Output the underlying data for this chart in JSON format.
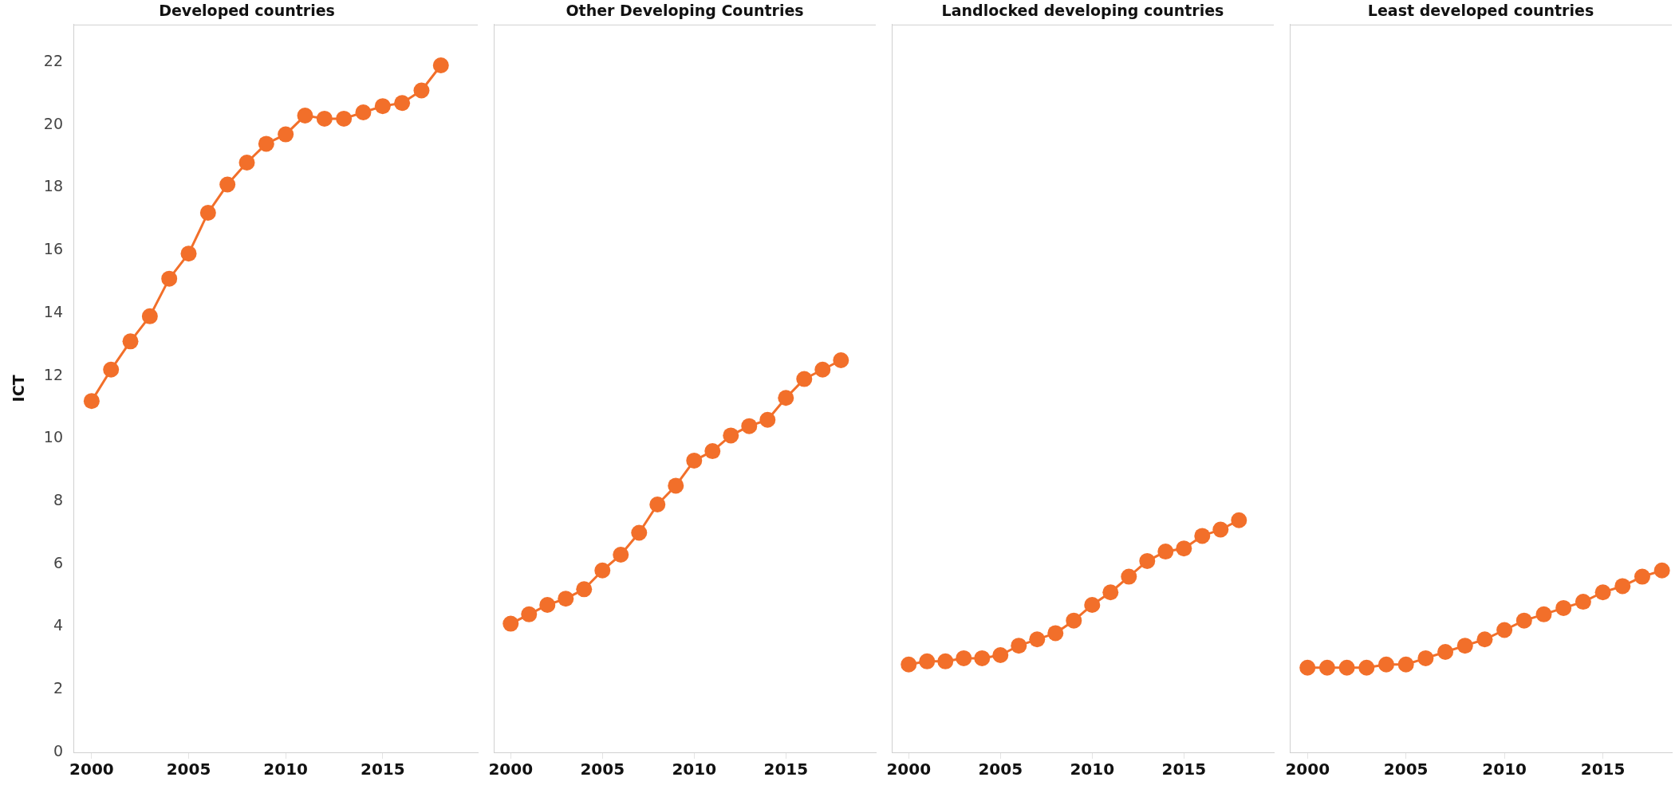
{
  "chart_data": [
    {
      "type": "line",
      "title": "Developed countries",
      "ylabel": "ICT",
      "x": [
        2000,
        2001,
        2002,
        2003,
        2004,
        2005,
        2006,
        2007,
        2008,
        2009,
        2010,
        2011,
        2012,
        2013,
        2014,
        2015,
        2016,
        2017,
        2018
      ],
      "series": [
        {
          "color": "#f26f2a",
          "values": [
            11.2,
            12.2,
            13.1,
            13.9,
            15.1,
            15.9,
            17.2,
            18.1,
            18.8,
            19.4,
            19.7,
            20.3,
            20.2,
            20.2,
            20.4,
            20.6,
            20.7,
            21.1,
            21.9
          ]
        }
      ],
      "xlim": [
        1999.1,
        2019.9
      ],
      "xticks": [
        2000,
        2005,
        2010,
        2015
      ],
      "ylim": [
        0,
        23.2
      ],
      "yticks": [
        0,
        2,
        4,
        6,
        8,
        10,
        12,
        14,
        16,
        18,
        20,
        22
      ],
      "grid": false,
      "marker": "circle",
      "line_style": "solid"
    },
    {
      "type": "line",
      "title": "Other Developing Countries",
      "x": [
        2000,
        2001,
        2002,
        2003,
        2004,
        2005,
        2006,
        2007,
        2008,
        2009,
        2010,
        2011,
        2012,
        2013,
        2014,
        2015,
        2016,
        2017,
        2018
      ],
      "series": [
        {
          "color": "#f26f2a",
          "values": [
            4.1,
            4.4,
            4.7,
            4.9,
            5.2,
            5.8,
            6.3,
            7.0,
            7.9,
            8.5,
            9.3,
            9.6,
            10.1,
            10.4,
            10.6,
            11.3,
            11.9,
            12.2,
            12.5
          ]
        }
      ],
      "xlim": [
        1999.1,
        2019.9
      ],
      "xticks": [
        2000,
        2005,
        2010,
        2015
      ],
      "ylim": [
        0,
        23.2
      ],
      "yticks": [
        0,
        2,
        4,
        6,
        8,
        10,
        12,
        14,
        16,
        18,
        20,
        22
      ],
      "tick_labels": "x",
      "grid": false,
      "marker": "circle",
      "line_style": "solid"
    },
    {
      "type": "line",
      "title": "Landlocked developing countries",
      "x": [
        2000,
        2001,
        2002,
        2003,
        2004,
        2005,
        2006,
        2007,
        2008,
        2009,
        2010,
        2011,
        2012,
        2013,
        2014,
        2015,
        2016,
        2017,
        2018
      ],
      "series": [
        {
          "color": "#f26f2a",
          "values": [
            2.8,
            2.9,
            2.9,
            3.0,
            3.0,
            3.1,
            3.4,
            3.6,
            3.8,
            4.2,
            4.7,
            5.1,
            5.6,
            6.1,
            6.4,
            6.5,
            6.9,
            7.1,
            7.4
          ]
        }
      ],
      "xlim": [
        1999.1,
        2019.9
      ],
      "xticks": [
        2000,
        2005,
        2010,
        2015
      ],
      "ylim": [
        0,
        23.2
      ],
      "yticks": [
        0,
        2,
        4,
        6,
        8,
        10,
        12,
        14,
        16,
        18,
        20,
        22
      ],
      "tick_labels": "x",
      "grid": false,
      "marker": "circle",
      "line_style": "solid"
    },
    {
      "type": "line",
      "title": "Least developed countries",
      "x": [
        2000,
        2001,
        2002,
        2003,
        2004,
        2005,
        2006,
        2007,
        2008,
        2009,
        2010,
        2011,
        2012,
        2013,
        2014,
        2015,
        2016,
        2017,
        2018
      ],
      "series": [
        {
          "color": "#f26f2a",
          "values": [
            2.7,
            2.7,
            2.7,
            2.7,
            2.8,
            2.8,
            3.0,
            3.2,
            3.4,
            3.6,
            3.9,
            4.2,
            4.4,
            4.6,
            4.8,
            5.1,
            5.3,
            5.6,
            5.8
          ]
        }
      ],
      "xlim": [
        1999.1,
        2018.5
      ],
      "xticks": [
        2000,
        2005,
        2010,
        2015
      ],
      "ylim": [
        0,
        23.2
      ],
      "yticks": [
        0,
        2,
        4,
        6,
        8,
        10,
        12,
        14,
        16,
        18,
        20,
        22
      ],
      "tick_labels": "x",
      "grid": false,
      "marker": "circle",
      "line_style": "solid"
    }
  ]
}
